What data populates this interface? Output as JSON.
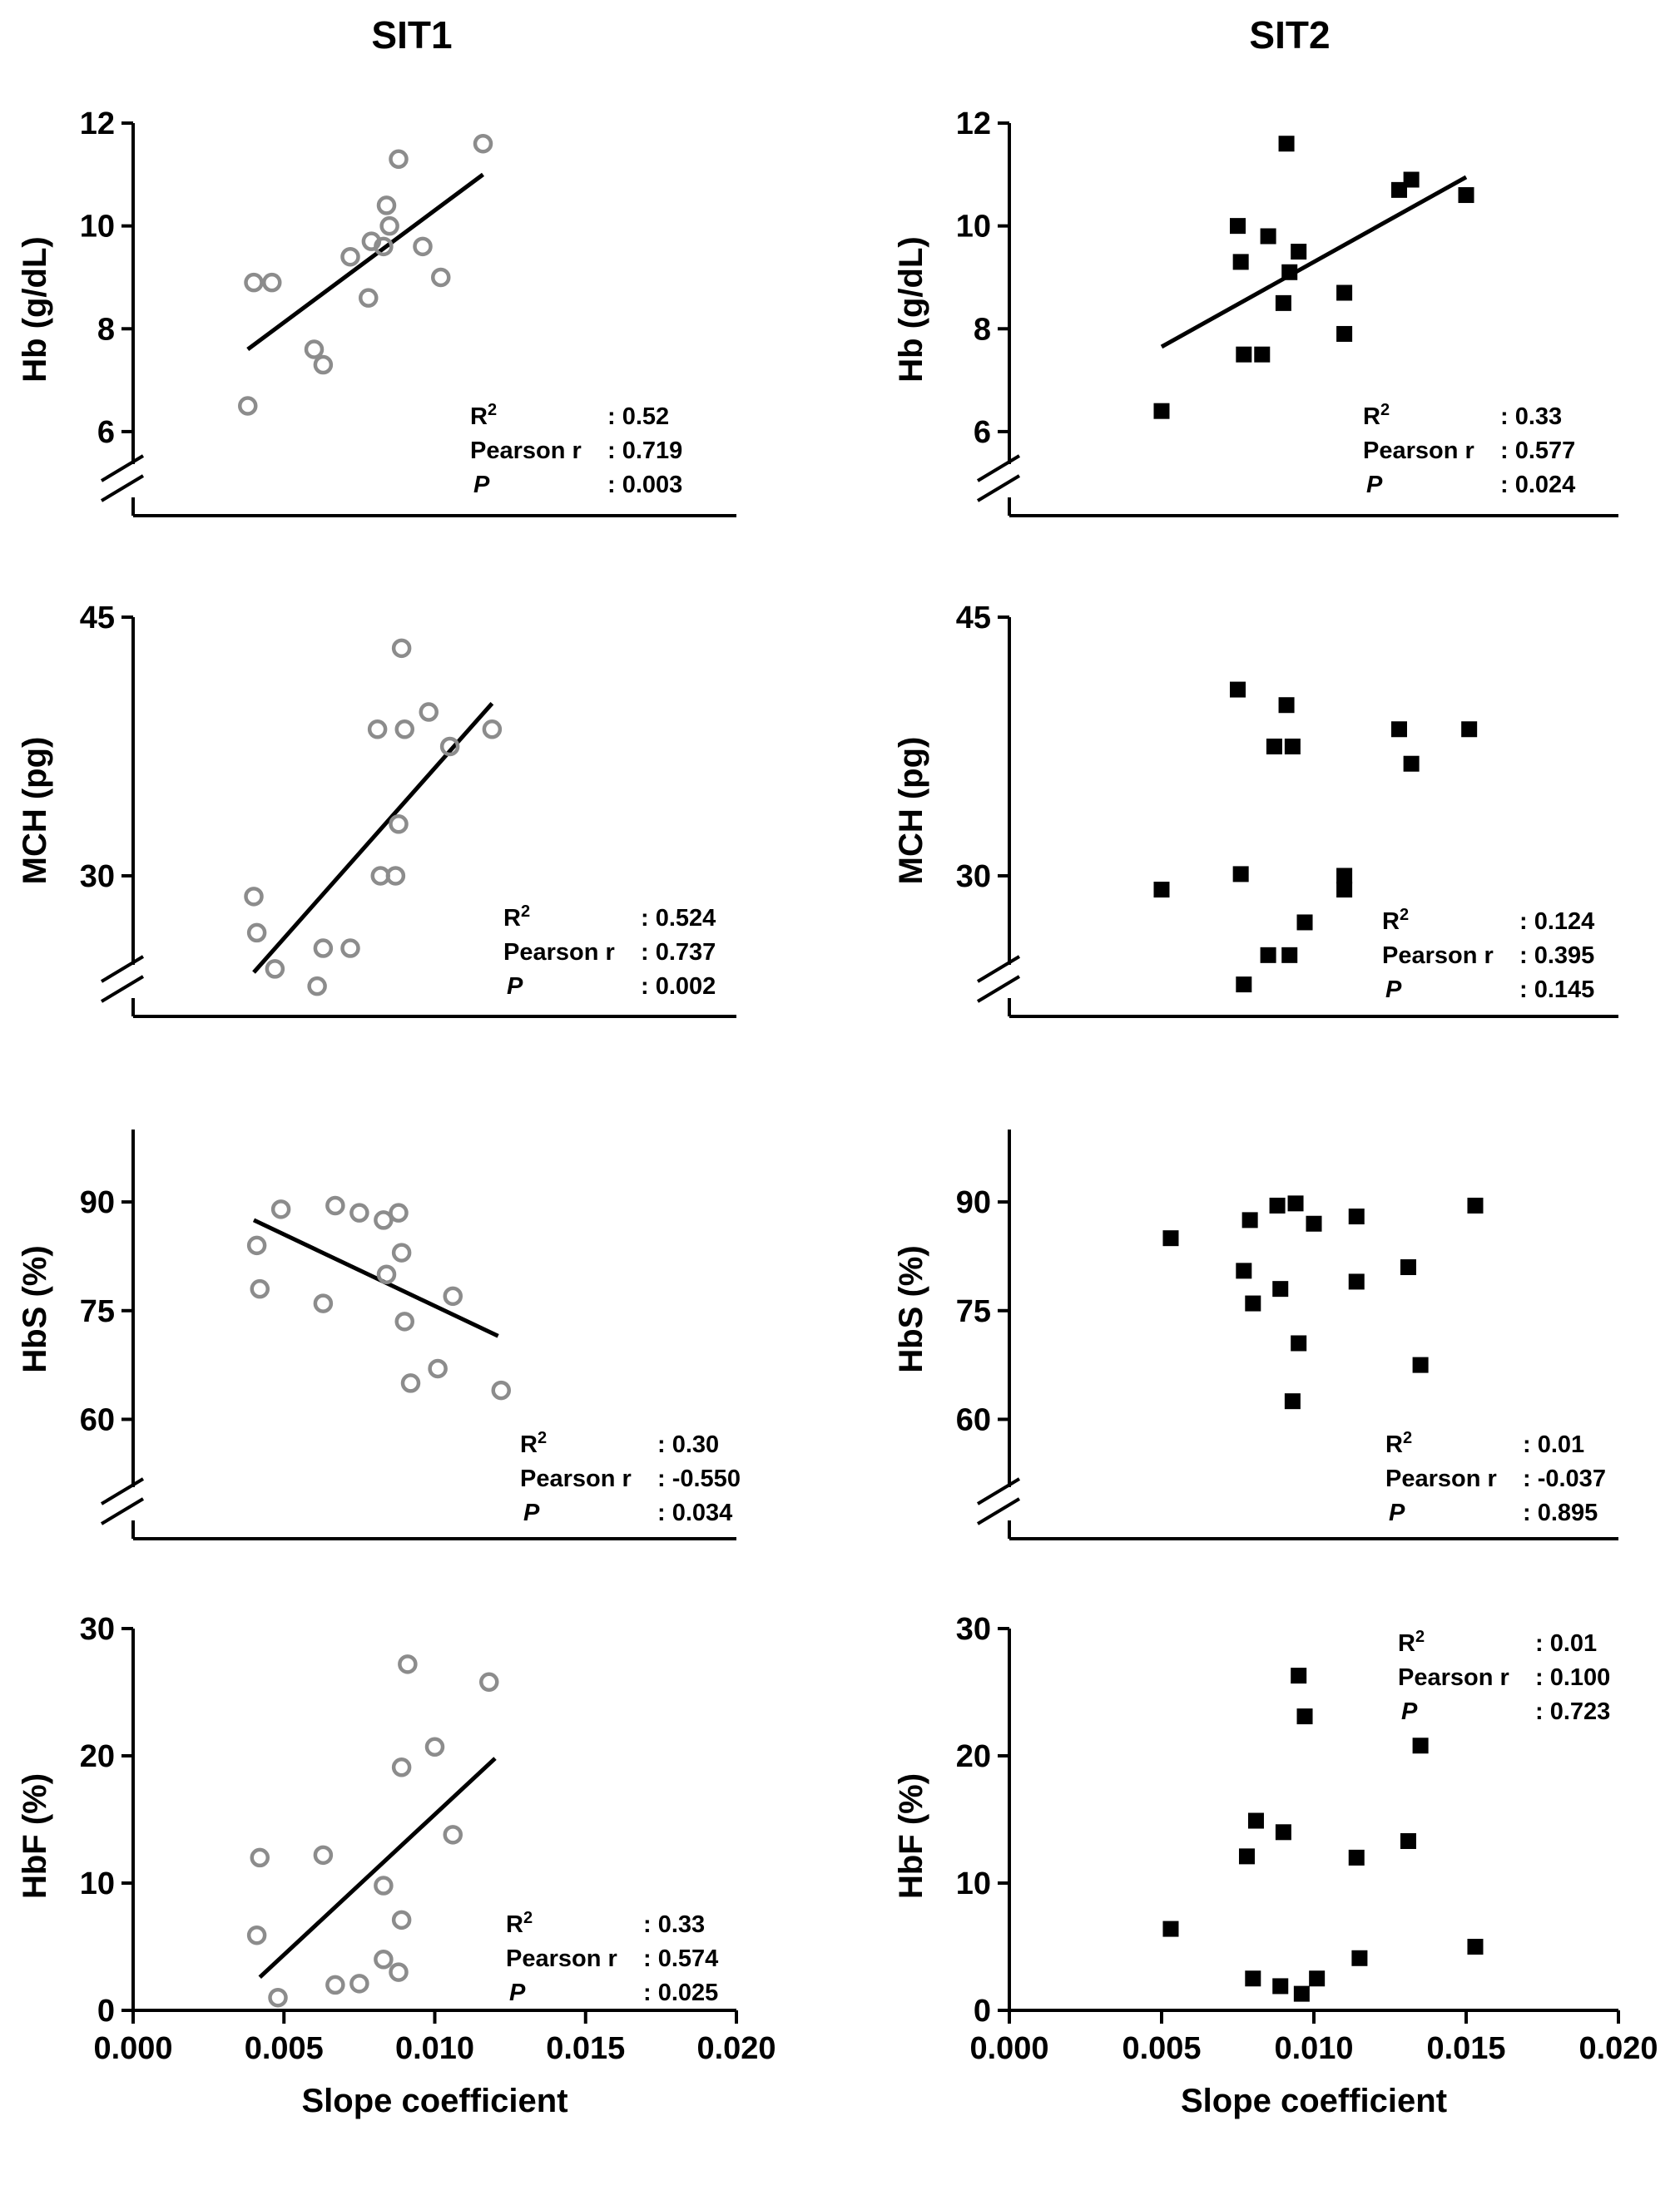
{
  "column_titles": [
    "SIT1",
    "SIT2"
  ],
  "x_axis": {
    "label": "Slope coefficient",
    "range": [
      0.0,
      0.02
    ],
    "ticks": [
      0.0,
      0.005,
      0.01,
      0.015,
      0.02
    ],
    "tick_labels": [
      "0.000",
      "0.005",
      "0.010",
      "0.015",
      "0.020"
    ]
  },
  "stat_labels": {
    "r2": "R",
    "r2_sup": "2",
    "pearson": "Pearson r",
    "p": "P"
  },
  "colors": {
    "sit1_marker": "#8c8c8c",
    "sit2_marker": "#000000",
    "axis": "#000000"
  },
  "chart_data": [
    {
      "type": "scatter",
      "panel": "Hb-SIT1",
      "column": "SIT1",
      "marker": "open-circle",
      "ylabel": "Hb (g/dL)",
      "ylim": [
        5.4,
        12
      ],
      "yticks": [
        6,
        8,
        10,
        12
      ],
      "ytick_labels": [
        "6",
        "8",
        "10",
        "12"
      ],
      "axis_break": true,
      "x": [
        0.0038,
        0.004,
        0.0046,
        0.006,
        0.0063,
        0.0072,
        0.0078,
        0.0079,
        0.0083,
        0.0084,
        0.0085,
        0.0088,
        0.0096,
        0.0102,
        0.0116
      ],
      "y": [
        6.5,
        8.9,
        8.9,
        7.6,
        7.3,
        9.4,
        8.6,
        9.7,
        9.6,
        10.4,
        10.0,
        11.3,
        9.6,
        9.0,
        11.6
      ],
      "fit": {
        "x": [
          0.0038,
          0.0116
        ],
        "y": [
          7.6,
          11.0
        ]
      },
      "stats": {
        "r2": ": 0.52",
        "pearson": ": 0.719",
        "p": ":  0.003"
      }
    },
    {
      "type": "scatter",
      "panel": "Hb-SIT2",
      "column": "SIT2",
      "marker": "filled-square",
      "ylabel": "Hb (g/dL)",
      "ylim": [
        5.4,
        12
      ],
      "yticks": [
        6,
        8,
        10,
        12
      ],
      "ytick_labels": [
        "6",
        "8",
        "10",
        "12"
      ],
      "axis_break": true,
      "x": [
        0.005,
        0.0075,
        0.0076,
        0.0077,
        0.0083,
        0.0085,
        0.009,
        0.0091,
        0.0092,
        0.0095,
        0.011,
        0.011,
        0.0128,
        0.0132,
        0.015
      ],
      "y": [
        6.4,
        10.0,
        9.3,
        7.5,
        7.5,
        9.8,
        8.5,
        11.6,
        9.1,
        9.5,
        8.7,
        7.9,
        10.7,
        10.9,
        10.6
      ],
      "fit": {
        "x": [
          0.005,
          0.015
        ],
        "y": [
          7.65,
          10.95
        ]
      },
      "stats": {
        "r2": ": 0.33",
        "pearson": ": 0.577",
        "p": ":  0.024"
      }
    },
    {
      "type": "scatter",
      "panel": "MCH-SIT1",
      "column": "SIT1",
      "marker": "open-circle",
      "ylabel": "MCH (pg)",
      "ylim": [
        24.5,
        45
      ],
      "yticks": [
        30,
        45
      ],
      "ytick_labels": [
        "30",
        "45"
      ],
      "axis_break": true,
      "x": [
        0.004,
        0.0041,
        0.0047,
        0.0061,
        0.0063,
        0.0072,
        0.0081,
        0.0082,
        0.0087,
        0.0088,
        0.0089,
        0.009,
        0.0098,
        0.0105,
        0.0119
      ],
      "y": [
        28.8,
        26.7,
        24.6,
        23.6,
        25.8,
        25.8,
        38.5,
        30.0,
        30.0,
        33.0,
        43.2,
        38.5,
        39.5,
        37.5,
        38.5
      ],
      "fit": {
        "x": [
          0.004,
          0.0119
        ],
        "y": [
          24.4,
          40.0
        ]
      },
      "stats": {
        "r2": ": 0.524",
        "pearson": ": 0.737",
        "p": ":  0.002"
      }
    },
    {
      "type": "scatter",
      "panel": "MCH-SIT2",
      "column": "SIT2",
      "marker": "filled-square",
      "ylabel": "MCH (pg)",
      "ylim": [
        24.5,
        45
      ],
      "yticks": [
        30,
        45
      ],
      "ytick_labels": [
        "30",
        "45"
      ],
      "axis_break": true,
      "x": [
        0.005,
        0.0075,
        0.0076,
        0.0077,
        0.0085,
        0.0087,
        0.0091,
        0.0092,
        0.0093,
        0.0097,
        0.011,
        0.011,
        0.0128,
        0.0132,
        0.0151
      ],
      "y": [
        29.2,
        40.8,
        30.1,
        23.7,
        25.4,
        37.5,
        39.9,
        25.4,
        37.5,
        27.3,
        30.0,
        29.2,
        38.5,
        36.5,
        38.5
      ],
      "stats": {
        "r2": ": 0.124",
        "pearson": ": 0.395",
        "p": ":  0.145"
      }
    },
    {
      "type": "scatter",
      "panel": "HbS-SIT1",
      "column": "SIT1",
      "marker": "open-circle",
      "ylabel": "HbS (%)",
      "ylim": [
        55,
        100
      ],
      "yticks": [
        60,
        75,
        90
      ],
      "ytick_labels": [
        "60",
        "75",
        "90"
      ],
      "axis_break": true,
      "x": [
        0.0041,
        0.0042,
        0.0049,
        0.0063,
        0.0067,
        0.0075,
        0.0083,
        0.0084,
        0.0088,
        0.0089,
        0.009,
        0.0092,
        0.0101,
        0.0106,
        0.0122
      ],
      "y": [
        84.0,
        78.0,
        89.0,
        76.0,
        89.5,
        88.5,
        87.5,
        80.0,
        88.5,
        83.0,
        73.5,
        65.0,
        67.0,
        77.0,
        64.0
      ],
      "fit": {
        "x": [
          0.004,
          0.0121
        ],
        "y": [
          87.5,
          71.5
        ]
      },
      "stats": {
        "r2": ": 0.30",
        "pearson": ": -0.550",
        "p": ":  0.034"
      }
    },
    {
      "type": "scatter",
      "panel": "HbS-SIT2",
      "column": "SIT2",
      "marker": "filled-square",
      "ylabel": "HbS (%)",
      "ylim": [
        55,
        100
      ],
      "yticks": [
        60,
        75,
        90
      ],
      "ytick_labels": [
        "60",
        "75",
        "90"
      ],
      "axis_break": true,
      "x": [
        0.0053,
        0.0077,
        0.0079,
        0.008,
        0.0088,
        0.0089,
        0.0093,
        0.0094,
        0.0095,
        0.01,
        0.0114,
        0.0114,
        0.0131,
        0.0135,
        0.0153
      ],
      "y": [
        85.0,
        80.5,
        87.5,
        76.0,
        89.5,
        78.0,
        62.5,
        89.8,
        70.5,
        87.0,
        79.0,
        88.0,
        81.0,
        67.5,
        89.5
      ],
      "stats": {
        "r2": ": 0.01",
        "pearson": ": -0.037",
        "p": ":  0.895"
      }
    },
    {
      "type": "scatter",
      "panel": "HbF-SIT1",
      "column": "SIT1",
      "marker": "open-circle",
      "ylabel": "HbF (%)",
      "ylim": [
        0,
        30
      ],
      "yticks": [
        0,
        10,
        20,
        30
      ],
      "ytick_labels": [
        "0",
        "10",
        "20",
        "30"
      ],
      "axis_break": false,
      "x": [
        0.0041,
        0.0042,
        0.0048,
        0.0063,
        0.0067,
        0.0075,
        0.0083,
        0.0083,
        0.0088,
        0.0089,
        0.0089,
        0.0091,
        0.01,
        0.0106,
        0.0118
      ],
      "y": [
        5.9,
        12.0,
        1.0,
        12.2,
        2.0,
        2.1,
        9.8,
        4.0,
        3.0,
        7.1,
        19.1,
        27.2,
        20.7,
        13.8,
        25.8
      ],
      "fit": {
        "x": [
          0.0042,
          0.012
        ],
        "y": [
          2.6,
          19.8
        ]
      },
      "stats": {
        "r2": ": 0.33",
        "pearson": ": 0.574",
        "p": ":  0.025"
      }
    },
    {
      "type": "scatter",
      "panel": "HbF-SIT2",
      "column": "SIT2",
      "marker": "filled-square",
      "ylabel": "HbF (%)",
      "ylim": [
        0,
        30
      ],
      "yticks": [
        0,
        10,
        20,
        30
      ],
      "ytick_labels": [
        "0",
        "10",
        "20",
        "30"
      ],
      "axis_break": false,
      "x": [
        0.0053,
        0.0078,
        0.008,
        0.0081,
        0.0089,
        0.009,
        0.0095,
        0.0096,
        0.0097,
        0.0101,
        0.0114,
        0.0115,
        0.0131,
        0.0135,
        0.0153
      ],
      "y": [
        6.4,
        12.1,
        2.5,
        14.9,
        1.9,
        14.0,
        26.3,
        1.3,
        23.1,
        2.5,
        12.0,
        4.1,
        13.3,
        20.8,
        5.0
      ],
      "stats": {
        "r2": ": 0.01",
        "pearson": ": 0.100",
        "p": ":  0.723"
      }
    }
  ]
}
